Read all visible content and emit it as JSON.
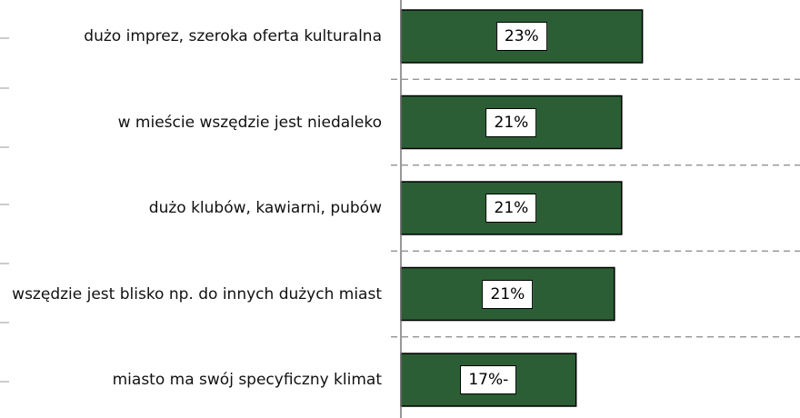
{
  "chart_data": {
    "type": "bar",
    "orientation": "horizontal",
    "categories": [
      "dużo imprez, szeroka oferta kulturalna",
      "w mieście wszędzie jest niedaleko",
      "dużo klubów, kawiarni, pubów",
      "wszędzie jest blisko np. do innych dużych miast",
      "miasto ma swój specyficzny klimat"
    ],
    "values": [
      23.3,
      21.3,
      21.3,
      20.6,
      16.9
    ],
    "value_labels": [
      "23%",
      "21%",
      "21%",
      "21%",
      "17%-"
    ],
    "color": "#2b5e34"
  }
}
